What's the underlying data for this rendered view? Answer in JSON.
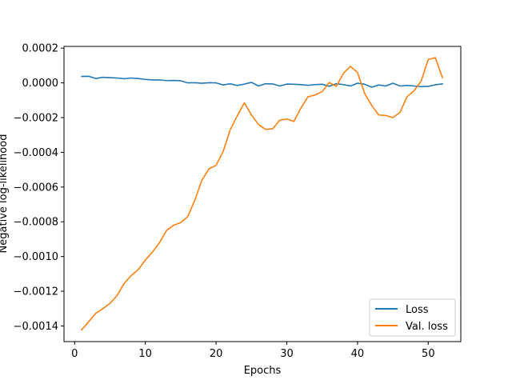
{
  "chart_data": {
    "type": "line",
    "title": "",
    "xlabel": "Epochs",
    "ylabel": "Negative log-likelihood",
    "xlim": [
      -1.5,
      54.6
    ],
    "ylim": [
      -0.00149,
      0.00021
    ],
    "xticks": [
      0,
      10,
      20,
      30,
      40,
      50
    ],
    "xtick_labels": [
      "0",
      "10",
      "20",
      "30",
      "40",
      "50"
    ],
    "yticks": [
      0.0002,
      0.0,
      -0.0002,
      -0.0004,
      -0.0006,
      -0.0008,
      -0.001,
      -0.0012,
      -0.0014
    ],
    "ytick_labels": [
      "0.0002",
      "0.0000",
      "−0.0002",
      "−0.0004",
      "−0.0006",
      "−0.0008",
      "−0.0010",
      "−0.0012",
      "−0.0014"
    ],
    "grid": false,
    "legend_position": "lower-right",
    "x": [
      1,
      2,
      3,
      4,
      5,
      6,
      7,
      8,
      9,
      10,
      11,
      12,
      13,
      14,
      15,
      16,
      17,
      18,
      19,
      20,
      21,
      22,
      23,
      24,
      25,
      26,
      27,
      28,
      29,
      30,
      31,
      32,
      33,
      34,
      35,
      36,
      37,
      38,
      39,
      40,
      41,
      42,
      43,
      44,
      45,
      46,
      47,
      48,
      49,
      50,
      51,
      52
    ],
    "series": [
      {
        "name": "Loss",
        "color": "#1f77b4",
        "values": [
          3.7e-05,
          3.8e-05,
          2.5e-05,
          3.2e-05,
          3e-05,
          2.8e-05,
          2.4e-05,
          2.8e-05,
          2.5e-05,
          2e-05,
          1.7e-05,
          1.7e-05,
          1.3e-05,
          1.4e-05,
          1.2e-05,
          0.0,
          1e-06,
          -2e-06,
          1e-06,
          0.0,
          -1.2e-05,
          -5e-06,
          -1.5e-05,
          -7e-06,
          3e-06,
          -1.8e-05,
          -5e-06,
          -6e-06,
          -1.8e-05,
          -7e-06,
          -8e-06,
          -1e-05,
          -1.4e-05,
          -1e-05,
          -8e-06,
          -2e-05,
          -5e-06,
          -1e-05,
          -1.8e-05,
          -2e-06,
          -8e-06,
          -2.5e-05,
          -1.2e-05,
          -1.8e-05,
          -2e-06,
          -1.8e-05,
          -1.5e-05,
          -1.8e-05,
          -2.2e-05,
          -2e-05,
          -1.1e-05,
          -6e-06
        ]
      },
      {
        "name": "Val. loss",
        "color": "#ff7f0e",
        "values": [
          -0.001422,
          -0.001375,
          -0.001327,
          -0.0013,
          -0.00127,
          -0.001225,
          -0.001155,
          -0.00111,
          -0.001075,
          -0.00102,
          -0.000975,
          -0.00092,
          -0.00085,
          -0.00082,
          -0.000805,
          -0.00077,
          -0.000675,
          -0.00056,
          -0.000495,
          -0.000475,
          -0.000395,
          -0.00027,
          -0.00019,
          -0.000115,
          -0.000185,
          -0.00024,
          -0.000268,
          -0.000265,
          -0.000215,
          -0.000208,
          -0.000222,
          -0.000145,
          -8e-05,
          -7e-05,
          -5e-05,
          2e-06,
          -2e-05,
          5.5e-05,
          9.5e-05,
          6e-05,
          -6e-05,
          -0.00013,
          -0.000185,
          -0.000188,
          -0.0002,
          -0.00017,
          -8e-05,
          -4.5e-05,
          1e-05,
          0.000135,
          0.000145,
          3e-05
        ]
      }
    ]
  }
}
